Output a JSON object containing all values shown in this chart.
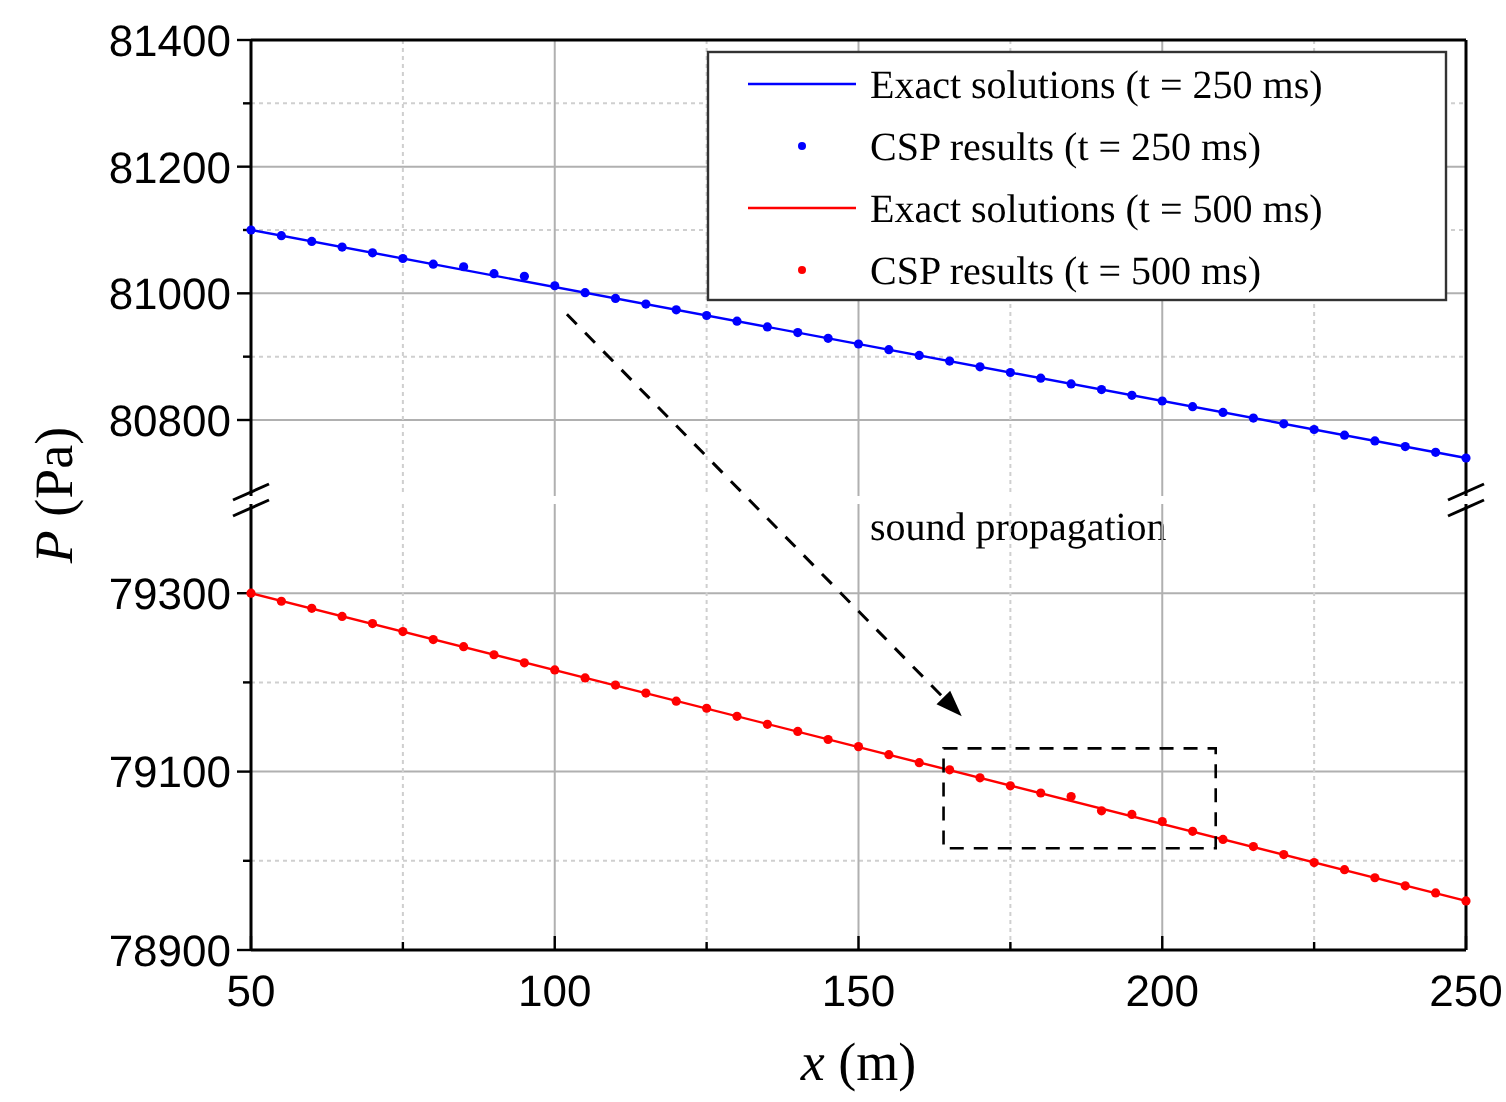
{
  "chart_data": [
    {
      "type": "line",
      "ylabel": "P (Pa)",
      "annotations": [
        "sound propagation"
      ],
      "xlim": [
        50,
        250
      ],
      "xticks": [
        50,
        {
          "value": 75,
          "label": null
        },
        100,
        {
          "value": 125,
          "label": null
        },
        150,
        {
          "value": 175,
          "label": null
        },
        200,
        {
          "value": 225,
          "label": null
        },
        250
      ],
      "ylim": [
        80680,
        81400
      ],
      "yticks": [
        {
          "value": 80900,
          "label": null
        },
        81000,
        {
          "value": 81100,
          "label": null
        },
        81200,
        {
          "value": 81300,
          "label": null
        },
        81400,
        80800
      ],
      "grid": true,
      "legend": "top right",
      "tick_labels": "y",
      "series": [
        {
          "name": "Exact solutions (t = 250 ms)",
          "type": "line",
          "color": "#0000ff",
          "x": [
            50,
            250
          ],
          "values": [
            81100,
            80740
          ]
        },
        {
          "name": "CSP results (t = 250 ms)",
          "type": "scatter",
          "marker": "circle",
          "color": "#0000ff",
          "x": [
            50,
            55,
            60,
            65,
            70,
            75,
            80,
            85,
            90,
            95,
            100,
            105,
            110,
            115,
            120,
            125,
            130,
            135,
            140,
            145,
            150,
            155,
            160,
            165,
            170,
            175,
            180,
            185,
            190,
            195,
            200,
            205,
            210,
            215,
            220,
            225,
            230,
            235,
            240,
            245,
            250
          ],
          "values": [
            81100,
            81091,
            81082,
            81073,
            81064,
            81055,
            81046,
            81042,
            81031,
            81027,
            81012,
            81001,
            80992,
            80983,
            80974,
            80965,
            80956,
            80947,
            80938,
            80929,
            80920,
            80911,
            80902,
            80893,
            80884,
            80875,
            80866,
            80857,
            80848,
            80839,
            80830,
            80821,
            80812,
            80803,
            80794,
            80785,
            80776,
            80767,
            80758,
            80749,
            80740
          ]
        }
      ]
    },
    {
      "type": "line",
      "xlabel": "x (m)",
      "xlim": [
        50,
        250
      ],
      "xticks": [
        50,
        {
          "value": 75,
          "label": null
        },
        100,
        {
          "value": 125,
          "label": null
        },
        150,
        {
          "value": 175,
          "label": null
        },
        200,
        {
          "value": 225,
          "label": null
        },
        250
      ],
      "ylim": [
        78900,
        79400
      ],
      "yticks": [
        78900,
        {
          "value": 79000,
          "label": null
        },
        79100,
        {
          "value": 79200,
          "label": null
        },
        79300
      ],
      "grid": true,
      "legend": "top right",
      "series": [
        {
          "name": "Exact solutions (t = 500 ms)",
          "type": "line",
          "color": "#ff0000",
          "x": [
            50,
            250
          ],
          "values": [
            79300,
            78955
          ]
        },
        {
          "name": "CSP results (t = 500 ms)",
          "type": "scatter",
          "marker": "circle",
          "color": "#ff0000",
          "x": [
            50,
            55,
            60,
            65,
            70,
            75,
            80,
            85,
            90,
            95,
            100,
            105,
            110,
            115,
            120,
            125,
            130,
            135,
            140,
            145,
            150,
            155,
            160,
            165,
            170,
            175,
            180,
            185,
            190,
            195,
            200,
            205,
            210,
            215,
            220,
            225,
            230,
            235,
            240,
            245,
            250
          ],
          "values": [
            79300,
            79291,
            79283,
            79274,
            79266,
            79257,
            79248,
            79240,
            79231,
            79222,
            79214,
            79205,
            79197,
            79188,
            79179,
            79171,
            79162,
            79153,
            79145,
            79136,
            79128,
            79119,
            79110,
            79102,
            79093,
            79084,
            79076,
            79072,
            79056,
            79052,
            79044,
            79033,
            79024,
            79016,
            79007,
            78998,
            78990,
            78981,
            78972,
            78964,
            78955
          ]
        }
      ]
    }
  ]
}
